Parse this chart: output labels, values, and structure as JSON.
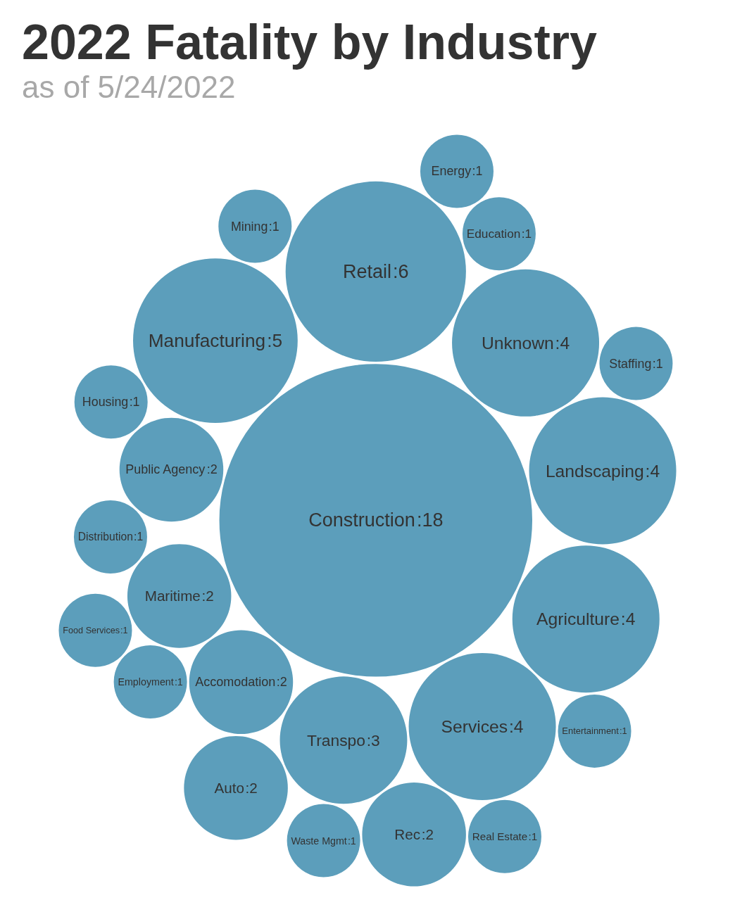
{
  "chart_data": {
    "type": "other",
    "title": "2022 Fatality by Industry",
    "subtitle": "as of 5/24/2022",
    "categories": [
      "Manufacturing",
      "Accomodation",
      "Employment",
      "Unknown",
      "Education",
      "Retail",
      "Transpo",
      "Distribution",
      "Waste Mgmt",
      "Mining",
      "Maritime",
      "Entertainment",
      "Housing",
      "Real Estate",
      "Landscaping",
      "Construction",
      "Agriculture",
      "Staffing",
      "Food Services",
      "Energy",
      "Public Agency",
      "Rec",
      "Auto",
      "Services"
    ],
    "values": [
      5,
      2,
      1,
      4,
      1,
      6,
      3,
      1,
      1,
      1,
      2,
      1,
      1,
      1,
      4,
      18,
      4,
      1,
      1,
      1,
      2,
      2,
      2,
      4
    ],
    "value_labels": [
      ":5",
      ":2",
      ":1",
      ":4",
      ":1",
      ":6",
      ":3",
      ":1",
      ":1",
      ":1",
      ":2",
      ":1",
      ":1",
      ":1",
      ":4",
      ":18",
      ":4",
      ":1",
      ":1",
      ":1",
      ":2",
      ":2",
      ":2",
      ":4"
    ],
    "color": "#5c9ebb"
  }
}
